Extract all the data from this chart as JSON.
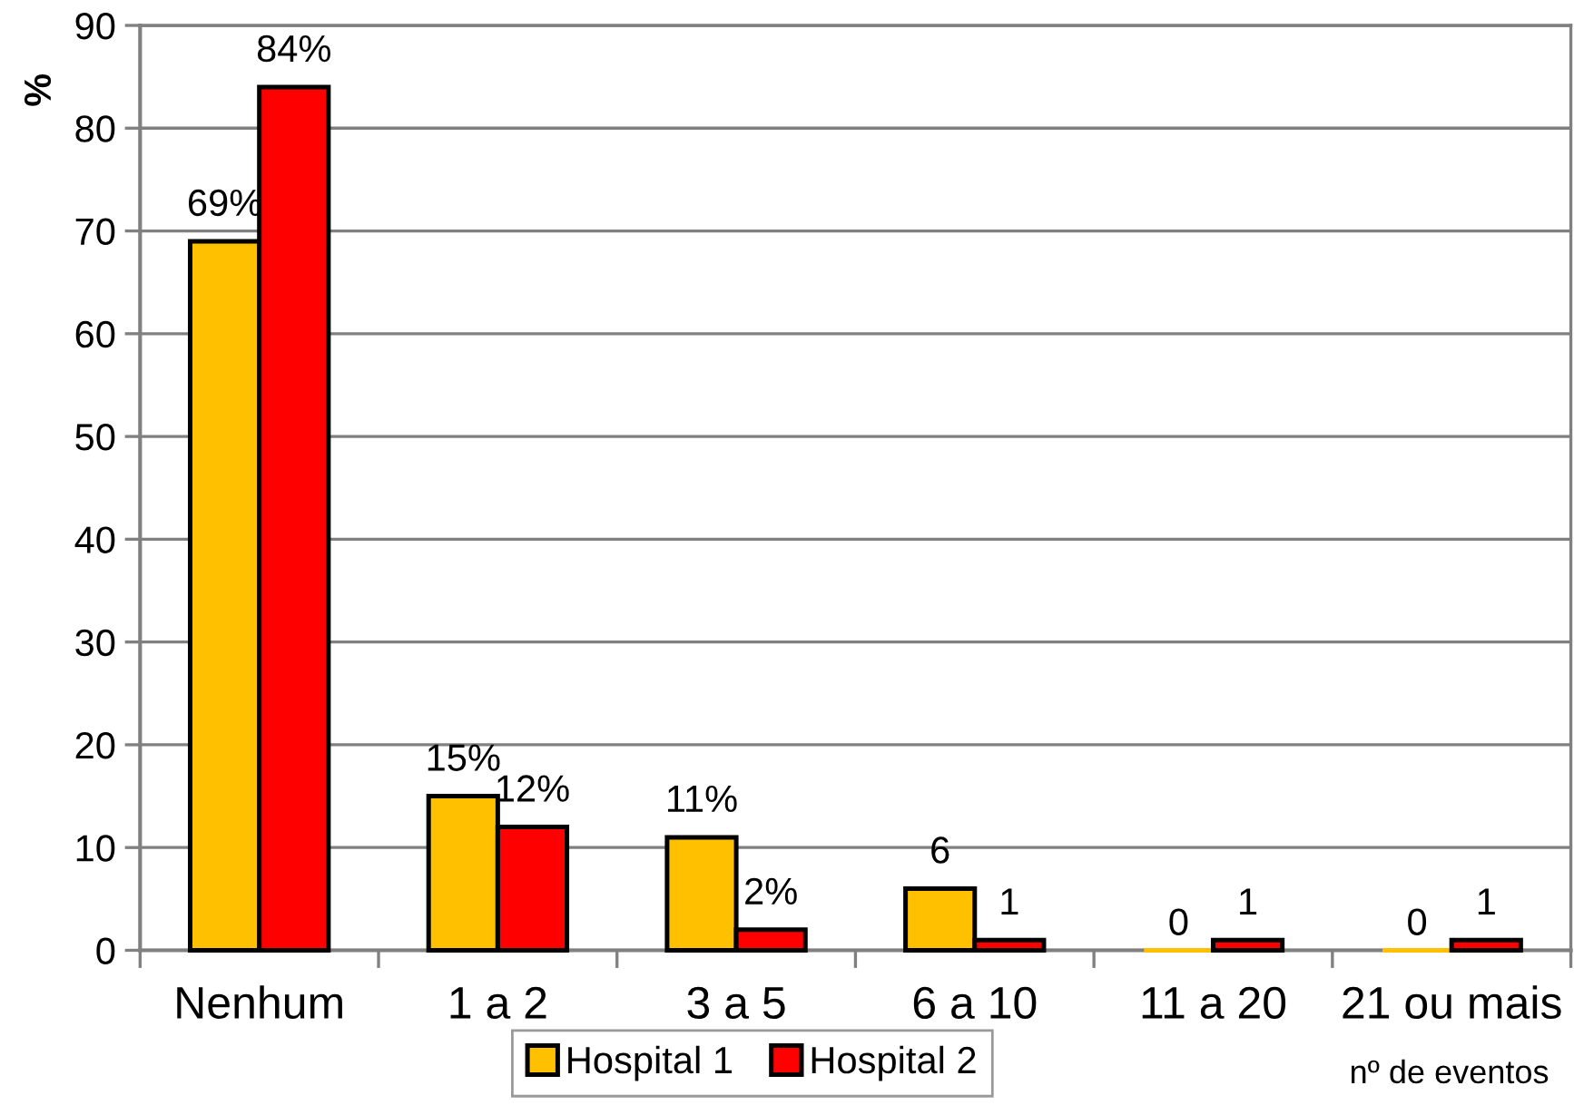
{
  "chart_data": {
    "type": "bar",
    "ylabel": "%",
    "xlabel": "nº de eventos",
    "categories": [
      "Nenhum",
      "1 a 2",
      "3 a 5",
      "6 a 10",
      "11 a 20",
      "21 ou mais"
    ],
    "series": [
      {
        "name": "Hospital 1",
        "color": "#ffc000",
        "values": [
          69,
          15,
          11,
          6,
          0,
          0
        ],
        "value_labels": [
          "69%",
          "15%",
          "11%",
          "6",
          "0",
          "0"
        ]
      },
      {
        "name": "Hospital 2",
        "color": "#ff0000",
        "values": [
          84,
          12,
          2,
          1,
          1,
          1
        ],
        "value_labels": [
          "84%",
          "12%",
          "2%",
          "1",
          "1",
          "1"
        ]
      }
    ],
    "ylim": [
      0,
      90
    ],
    "yticks": [
      0,
      10,
      20,
      30,
      40,
      50,
      60,
      70,
      80,
      90
    ],
    "grid": "y",
    "legend": "bottom"
  }
}
